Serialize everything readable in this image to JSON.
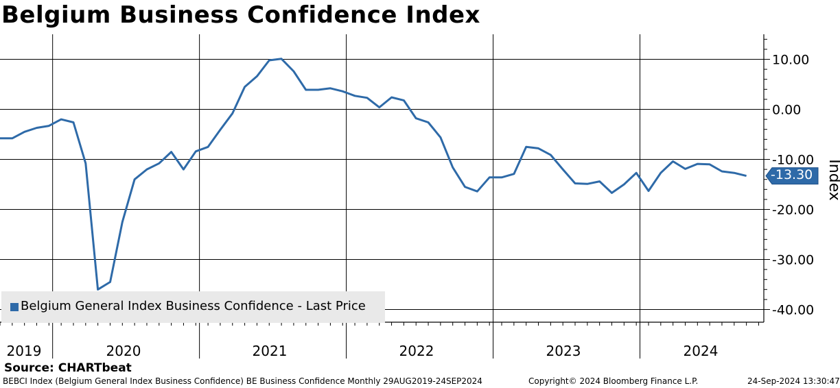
{
  "chart_data": {
    "type": "line",
    "title": "Belgium Business Confidence Index",
    "ylabel": "Index",
    "xlabel": "",
    "ylim": [
      -41.5,
      14.5
    ],
    "yticks": [
      10,
      0,
      -10,
      -20,
      -30,
      -40
    ],
    "ytick_labels": [
      "10.00",
      "0.00",
      "-10.00",
      "-20.00",
      "-30.00",
      "-40.00"
    ],
    "year_labels": [
      "2019",
      "2020",
      "2021",
      "2022",
      "2023",
      "2024"
    ],
    "legend": "Belgium General Index Business Confidence - Last Price",
    "legend_position": "bottom-left",
    "series": [
      {
        "name": "Belgium General Index Business Confidence - Last Price",
        "color": "#2e6aa8",
        "x": [
          "2019-08",
          "2019-09",
          "2019-10",
          "2019-11",
          "2019-12",
          "2020-01",
          "2020-02",
          "2020-03",
          "2020-04",
          "2020-05",
          "2020-06",
          "2020-07",
          "2020-08",
          "2020-09",
          "2020-10",
          "2020-11",
          "2020-12",
          "2021-01",
          "2021-02",
          "2021-03",
          "2021-04",
          "2021-05",
          "2021-06",
          "2021-07",
          "2021-08",
          "2021-09",
          "2021-10",
          "2021-11",
          "2021-12",
          "2022-01",
          "2022-02",
          "2022-03",
          "2022-04",
          "2022-05",
          "2022-06",
          "2022-07",
          "2022-08",
          "2022-09",
          "2022-10",
          "2022-11",
          "2022-12",
          "2023-01",
          "2023-02",
          "2023-03",
          "2023-04",
          "2023-05",
          "2023-06",
          "2023-07",
          "2023-08",
          "2023-09",
          "2023-10",
          "2023-11",
          "2023-12",
          "2024-01",
          "2024-02",
          "2024-03",
          "2024-04",
          "2024-05",
          "2024-06",
          "2024-07",
          "2024-08",
          "2024-09"
        ],
        "values": [
          -5.8,
          -5.8,
          -4.5,
          -3.7,
          -3.3,
          -2.0,
          -2.6,
          -10.8,
          -36.0,
          -34.5,
          -22.5,
          -14.0,
          -12.0,
          -10.8,
          -8.5,
          -12.0,
          -8.4,
          -7.5,
          -4.1,
          -0.8,
          4.5,
          6.6,
          9.8,
          10.1,
          7.6,
          3.9,
          3.9,
          4.2,
          3.6,
          2.7,
          2.3,
          0.4,
          2.4,
          1.8,
          -1.8,
          -2.6,
          -5.6,
          -11.6,
          -15.5,
          -16.4,
          -13.6,
          -13.6,
          -12.9,
          -7.5,
          -7.8,
          -9.1,
          -12.0,
          -14.8,
          -14.9,
          -14.4,
          -16.7,
          -15.0,
          -12.7,
          -16.3,
          -12.7,
          -10.4,
          -11.9,
          -10.9,
          -11.0,
          -12.4,
          -12.7,
          -13.3
        ]
      }
    ],
    "last_value_label": "-13.30"
  },
  "source": "Source: CHARTbeat",
  "footer": {
    "description": "BEBCI Index (Belgium General Index Business Confidence) BE Business Confidence  Monthly 29AUG2019-24SEP2024",
    "copyright": "Copyright© 2024 Bloomberg Finance L.P.",
    "timestamp": "24-Sep-2024 13:30:47"
  },
  "colors": {
    "line": "#2e6aa8",
    "grid": "#000000",
    "legend_bg": "#e9e9e9"
  }
}
